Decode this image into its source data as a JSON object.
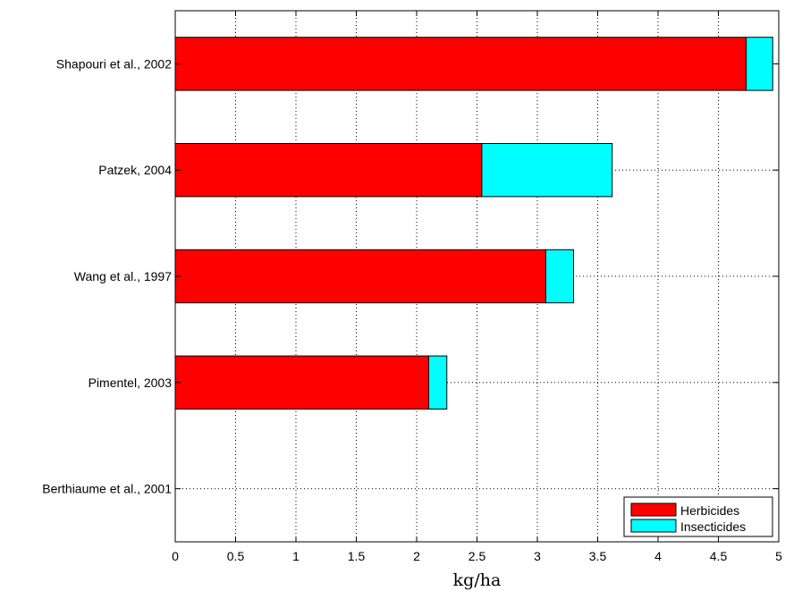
{
  "chart_data": {
    "type": "bar",
    "orientation": "horizontal",
    "stacked": true,
    "categories": [
      "Shapouri et al., 2002",
      "Patzek, 2004",
      "Wang et al., 1997",
      "Pimentel, 2003",
      "Berthiaume et al., 2001"
    ],
    "series": [
      {
        "name": "Herbicides",
        "color": "#ff0000",
        "values": [
          4.73,
          2.54,
          3.07,
          2.1,
          0
        ]
      },
      {
        "name": "Insecticides",
        "color": "#00ffff",
        "values": [
          0.22,
          1.08,
          0.23,
          0.15,
          0
        ]
      }
    ],
    "xlabel": "kg/ha",
    "xlim": [
      0,
      5
    ],
    "xticks": [
      "0",
      "0.5",
      "1",
      "1.5",
      "2",
      "2.5",
      "3",
      "3.5",
      "4",
      "4.5",
      "5"
    ],
    "grid": true,
    "legend_position": "bottom-right"
  }
}
